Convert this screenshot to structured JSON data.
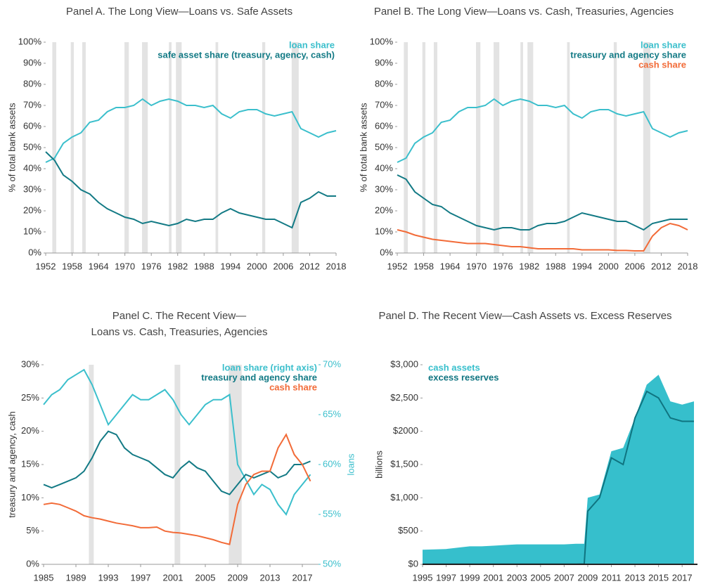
{
  "chart_data": [
    {
      "type": "line",
      "title": "Panel A. The Long View—Loans vs. Safe Assets",
      "y_label": "% of total bank assets",
      "x": [
        1952,
        1954,
        1956,
        1958,
        1960,
        1962,
        1964,
        1966,
        1968,
        1970,
        1972,
        1974,
        1976,
        1978,
        1980,
        1982,
        1984,
        1986,
        1988,
        1990,
        1992,
        1994,
        1996,
        1998,
        2000,
        2002,
        2004,
        2006,
        2008,
        2010,
        2012,
        2014,
        2016,
        2018
      ],
      "series": [
        {
          "name": "loan share",
          "color": "#3bbfcc",
          "values": [
            43,
            45,
            52,
            55,
            57,
            62,
            63,
            67,
            69,
            69,
            70,
            73,
            70,
            72,
            73,
            72,
            70,
            70,
            69,
            70,
            66,
            64,
            67,
            68,
            68,
            66,
            65,
            66,
            67,
            59,
            57,
            55,
            57,
            58
          ]
        },
        {
          "name": "safe asset share (treasury, agency, cash)",
          "color": "#137a85",
          "values": [
            48,
            44,
            37,
            34,
            30,
            28,
            24,
            21,
            19,
            17,
            16,
            14,
            15,
            14,
            13,
            14,
            16,
            15,
            16,
            16,
            19,
            21,
            19,
            18,
            17,
            16,
            16,
            14,
            12,
            24,
            26,
            29,
            27,
            27
          ]
        }
      ],
      "recessions": [
        [
          1953.5,
          1954.4
        ],
        [
          1957.7,
          1958.4
        ],
        [
          1960.3,
          1961.1
        ],
        [
          1969.9,
          1970.9
        ],
        [
          1973.9,
          1975.2
        ],
        [
          1980,
          1980.6
        ],
        [
          1981.6,
          1982.9
        ],
        [
          1990.6,
          1991.2
        ],
        [
          2001.2,
          2001.9
        ],
        [
          2007.9,
          2009.5
        ]
      ],
      "xlim": [
        1952,
        2018
      ],
      "xticks": [
        1952,
        1958,
        1964,
        1970,
        1976,
        1982,
        1988,
        1994,
        2000,
        2006,
        2012,
        2018
      ],
      "ylim": [
        0,
        100
      ],
      "yticks": [
        {
          "value": 0,
          "label": "0%"
        },
        {
          "value": 10,
          "label": "10%"
        },
        {
          "value": 20,
          "label": "20%"
        },
        {
          "value": 30,
          "label": "30%"
        },
        {
          "value": 40,
          "label": "40%"
        },
        {
          "value": 50,
          "label": "50%"
        },
        {
          "value": 60,
          "label": "60%"
        },
        {
          "value": 70,
          "label": "70%"
        },
        {
          "value": 80,
          "label": "80%"
        },
        {
          "value": 90,
          "label": "90%"
        },
        {
          "value": 100,
          "label": "100%"
        }
      ],
      "legend": "upper right"
    },
    {
      "type": "line",
      "title": "Panel B. The Long View—Loans vs. Cash, Treasuries, Agencies",
      "y_label": "% of total bank assets",
      "x": [
        1952,
        1954,
        1956,
        1958,
        1960,
        1962,
        1964,
        1966,
        1968,
        1970,
        1972,
        1974,
        1976,
        1978,
        1980,
        1982,
        1984,
        1986,
        1988,
        1990,
        1992,
        1994,
        1996,
        1998,
        2000,
        2002,
        2004,
        2006,
        2008,
        2010,
        2012,
        2014,
        2016,
        2018
      ],
      "series": [
        {
          "name": "loan share",
          "color": "#3bbfcc",
          "values": [
            43,
            45,
            52,
            55,
            57,
            62,
            63,
            67,
            69,
            69,
            70,
            73,
            70,
            72,
            73,
            72,
            70,
            70,
            69,
            70,
            66,
            64,
            67,
            68,
            68,
            66,
            65,
            66,
            67,
            59,
            57,
            55,
            57,
            58
          ]
        },
        {
          "name": "treasury and agency share",
          "color": "#137a85",
          "values": [
            37,
            35,
            29,
            26,
            23,
            22,
            19,
            17,
            15,
            13,
            12,
            11,
            12,
            12,
            11,
            11,
            13,
            14,
            14,
            15,
            17,
            19,
            18,
            17,
            16,
            15,
            15,
            13,
            11,
            14,
            15,
            16,
            16,
            16
          ]
        },
        {
          "name": "cash share",
          "color": "#f26b38",
          "values": [
            11,
            10,
            8.5,
            7.5,
            6.5,
            6,
            5.5,
            5,
            4.5,
            4.5,
            4.5,
            4,
            3.5,
            3,
            3,
            2.5,
            2,
            2,
            2,
            2,
            2,
            1.5,
            1.5,
            1.5,
            1.5,
            1.2,
            1.2,
            1,
            1,
            8,
            12,
            14,
            13,
            11
          ]
        }
      ],
      "recessions": [
        [
          1953.5,
          1954.4
        ],
        [
          1957.7,
          1958.4
        ],
        [
          1960.3,
          1961.1
        ],
        [
          1969.9,
          1970.9
        ],
        [
          1973.9,
          1975.2
        ],
        [
          1980,
          1980.6
        ],
        [
          1981.6,
          1982.9
        ],
        [
          1990.6,
          1991.2
        ],
        [
          2001.2,
          2001.9
        ],
        [
          2007.9,
          2009.5
        ]
      ],
      "xlim": [
        1952,
        2018
      ],
      "xticks": [
        1952,
        1958,
        1964,
        1970,
        1976,
        1982,
        1988,
        1994,
        2000,
        2006,
        2012,
        2018
      ],
      "ylim": [
        0,
        100
      ],
      "yticks": [
        {
          "value": 0,
          "label": "0%"
        },
        {
          "value": 10,
          "label": "10%"
        },
        {
          "value": 20,
          "label": "20%"
        },
        {
          "value": 30,
          "label": "30%"
        },
        {
          "value": 40,
          "label": "40%"
        },
        {
          "value": 50,
          "label": "50%"
        },
        {
          "value": 60,
          "label": "60%"
        },
        {
          "value": 70,
          "label": "70%"
        },
        {
          "value": 80,
          "label": "80%"
        },
        {
          "value": 90,
          "label": "90%"
        },
        {
          "value": 100,
          "label": "100%"
        }
      ],
      "legend": "upper right"
    },
    {
      "type": "line",
      "title": [
        "Panel C. The Recent View—",
        "Loans vs. Cash, Treasuries, Agencies"
      ],
      "y_label": "treasury and agency, cash",
      "y2_label": "loans",
      "x": [
        1985,
        1986,
        1987,
        1988,
        1989,
        1990,
        1991,
        1992,
        1993,
        1994,
        1995,
        1996,
        1997,
        1998,
        1999,
        2000,
        2001,
        2002,
        2003,
        2004,
        2005,
        2006,
        2007,
        2008,
        2009,
        2010,
        2011,
        2012,
        2013,
        2014,
        2015,
        2016,
        2017,
        2018
      ],
      "series": [
        {
          "name": "loan share (right axis)",
          "color": "#3bbfcc",
          "axis": "y2",
          "values": [
            66,
            67,
            67.5,
            68.5,
            69,
            69.5,
            68,
            66,
            64,
            65,
            66,
            67,
            66.5,
            66.5,
            67,
            67.5,
            66.5,
            65,
            64,
            65,
            66,
            66.5,
            66.5,
            67,
            60,
            58.5,
            57,
            58,
            57.5,
            56,
            55,
            57,
            58,
            59
          ]
        },
        {
          "name": "treasury and agency share",
          "color": "#137a85",
          "values": [
            12,
            11.5,
            12,
            12.5,
            13,
            14,
            16,
            18.5,
            20,
            19.5,
            17.5,
            16.5,
            16,
            15.5,
            14.5,
            13.5,
            13,
            14.5,
            15.5,
            14.5,
            14,
            12.5,
            11,
            10.5,
            12,
            13.5,
            13,
            13.5,
            14,
            13,
            13.5,
            15,
            15,
            15.5
          ]
        },
        {
          "name": "cash share",
          "color": "#f26b38",
          "values": [
            9,
            9.2,
            9,
            8.5,
            8,
            7.3,
            7,
            6.8,
            6.5,
            6.2,
            6,
            5.8,
            5.5,
            5.5,
            5.6,
            5,
            4.8,
            4.7,
            4.5,
            4.3,
            4,
            3.7,
            3.3,
            3,
            9,
            12,
            13.5,
            14,
            14,
            17.5,
            19.5,
            16.5,
            15,
            12.5
          ]
        }
      ],
      "recessions": [
        [
          1990.6,
          1991.2
        ],
        [
          2001.2,
          2001.9
        ],
        [
          2007.9,
          2009.5
        ]
      ],
      "xlim": [
        1985,
        2019
      ],
      "xticks": [
        1985,
        1989,
        1993,
        1997,
        2001,
        2005,
        2009,
        2013,
        2017
      ],
      "ylim": [
        0,
        30
      ],
      "yticks": [
        {
          "value": 0,
          "label": "0%"
        },
        {
          "value": 5,
          "label": "5%"
        },
        {
          "value": 10,
          "label": "10%"
        },
        {
          "value": 15,
          "label": "15%"
        },
        {
          "value": 20,
          "label": "20%"
        },
        {
          "value": 25,
          "label": "25%"
        },
        {
          "value": 30,
          "label": "30%"
        }
      ],
      "y2lim": [
        50,
        70
      ],
      "y2ticks": [
        {
          "value": 50,
          "label": "50%"
        },
        {
          "value": 55,
          "label": "55%"
        },
        {
          "value": 60,
          "label": "60%"
        },
        {
          "value": 65,
          "label": "65%"
        },
        {
          "value": 70,
          "label": "70%"
        }
      ],
      "legend": "upper right"
    },
    {
      "type": "area",
      "title": "Panel D. The Recent View—Cash Assets vs. Excess Reserves",
      "y_label": "billions",
      "x": [
        1995,
        1996,
        1997,
        1998,
        1999,
        2000,
        2001,
        2002,
        2003,
        2004,
        2005,
        2006,
        2007,
        2008,
        2008.7,
        2009,
        2010,
        2011,
        2012,
        2013,
        2014,
        2015,
        2016,
        2017,
        2018
      ],
      "series": [
        {
          "name": "cash assets",
          "color": "#36bfcc",
          "values": [
            220,
            225,
            230,
            250,
            270,
            270,
            280,
            290,
            300,
            300,
            300,
            300,
            300,
            310,
            310,
            1000,
            1050,
            1700,
            1750,
            2200,
            2700,
            2850,
            2450,
            2400,
            2450
          ]
        },
        {
          "name": "excess reserves",
          "color": "#0f7480",
          "values": [
            2,
            2,
            2,
            2,
            2,
            2,
            2,
            2,
            2,
            2,
            2,
            2,
            2,
            3,
            5,
            800,
            1000,
            1600,
            1500,
            2200,
            2600,
            2500,
            2200,
            2150,
            2150
          ]
        }
      ],
      "xlim": [
        1995,
        2018.3
      ],
      "xticks": [
        1995,
        1997,
        1999,
        2001,
        2003,
        2005,
        2007,
        2009,
        2011,
        2013,
        2015,
        2017
      ],
      "ylim": [
        0,
        3000
      ],
      "yticks": [
        {
          "value": 0,
          "label": "$0"
        },
        {
          "value": 500,
          "label": "$500"
        },
        {
          "value": 1000,
          "label": "$1,000"
        },
        {
          "value": 1500,
          "label": "$1,500"
        },
        {
          "value": 2000,
          "label": "$2000"
        },
        {
          "value": 2500,
          "label": "$2,500"
        },
        {
          "value": 3000,
          "label": "$3,000"
        }
      ],
      "legend": "upper left"
    }
  ]
}
